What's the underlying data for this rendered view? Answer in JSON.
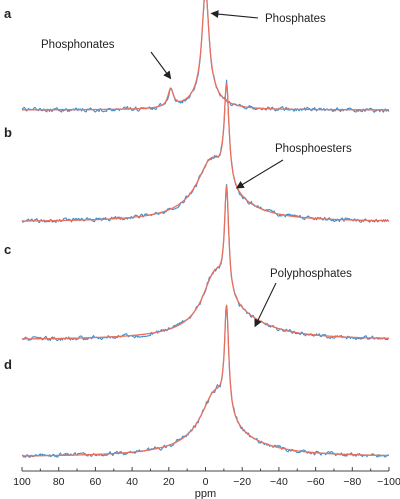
{
  "colors": {
    "experimental": "#3a8fcf",
    "fit": "#e8705f",
    "axis": "#444444",
    "text": "#222222"
  },
  "chart_data": {
    "type": "line",
    "xlabel": "ppm",
    "xlim": [
      100,
      -100
    ],
    "xticks": [
      100,
      80,
      60,
      40,
      20,
      0,
      -20,
      -40,
      -60,
      -80,
      -100
    ],
    "xtick_labels": [
      "100",
      "80",
      "60",
      "40",
      "20",
      "0",
      "−20",
      "−40",
      "−60",
      "−80",
      "−100"
    ],
    "series_styles": [
      {
        "role": "experimental",
        "color": "#3a8fcf"
      },
      {
        "role": "fit",
        "color": "#e8705f"
      }
    ],
    "panels": [
      {
        "label": "a",
        "peaks": [
          {
            "center": 0,
            "height": 1.0,
            "width": 2.2
          },
          {
            "center": 0,
            "height": 0.16,
            "width": 8
          },
          {
            "center": 19,
            "height": 0.17,
            "width": 1.8
          }
        ],
        "annotations": [
          {
            "text": "Phosphates",
            "target_ppm": 0,
            "target_level": 0.92
          },
          {
            "text": "Phosphonates",
            "target_ppm": 19,
            "target_level": 0.3
          }
        ]
      },
      {
        "label": "b",
        "peaks": [
          {
            "center": -11.5,
            "height": 0.95,
            "width": 1.6
          },
          {
            "center": -3,
            "height": 0.42,
            "width": 9
          },
          {
            "center": -8,
            "height": 0.18,
            "width": 20
          }
        ],
        "annotations": [
          {
            "text": "Phosphoesters",
            "target_ppm": -17,
            "target_level": 0.33
          }
        ]
      },
      {
        "label": "c",
        "peaks": [
          {
            "center": -11.5,
            "height": 1.0,
            "width": 1.4
          },
          {
            "center": -5,
            "height": 0.45,
            "width": 8
          },
          {
            "center": -14,
            "height": 0.2,
            "width": 22
          }
        ],
        "annotations": [
          {
            "text": "Polyphosphates",
            "target_ppm": -27,
            "target_level": 0.13
          }
        ]
      },
      {
        "label": "d",
        "peaks": [
          {
            "center": -11.5,
            "height": 1.0,
            "width": 1.4
          },
          {
            "center": -5,
            "height": 0.45,
            "width": 9
          },
          {
            "center": -10,
            "height": 0.15,
            "width": 24
          }
        ],
        "annotations": []
      }
    ]
  }
}
